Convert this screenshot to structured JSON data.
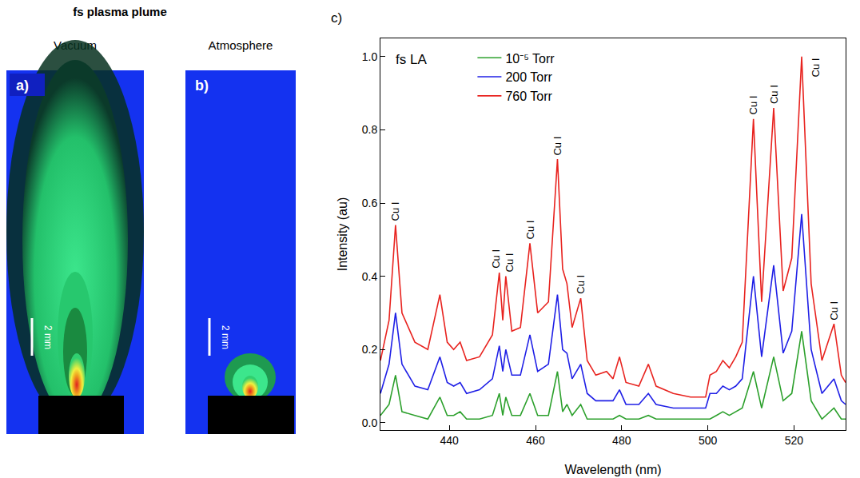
{
  "figure_title": "fs plasma plume",
  "panels": [
    {
      "label": "a)",
      "title": "Vacuum",
      "scale_bar": "2 mm"
    },
    {
      "label": "b)",
      "title": "Atmosphere",
      "scale_bar": "2 mm"
    }
  ],
  "chart_data": {
    "type": "line",
    "label": "c)",
    "inset_text": "fs LA",
    "x_label": "Wavelength (nm)",
    "y_label": "Intensity (au)",
    "xlim": [
      424,
      532
    ],
    "xticks": [
      440,
      460,
      480,
      500,
      520
    ],
    "ylim": [
      -0.02,
      1.05
    ],
    "yticks": [
      {
        "value": 0,
        "label": "0.0"
      },
      {
        "value": 0.2,
        "label": "0.2"
      },
      {
        "value": 0.4,
        "label": "0.4"
      },
      {
        "value": 0.6,
        "label": "0.6"
      },
      {
        "value": 0.8,
        "label": "0.8"
      },
      {
        "value": 1,
        "label": "1.0"
      }
    ],
    "grid": false,
    "legend": "upper left",
    "x": [
      424,
      426,
      427.5,
      429,
      432,
      435,
      437.8,
      439.5,
      441,
      442.5,
      444,
      447,
      450,
      451.6,
      452.4,
      453.1,
      454.5,
      456.5,
      458.7,
      460.5,
      463,
      465.1,
      466.3,
      467.3,
      468.5,
      470.5,
      472,
      474,
      476.5,
      478,
      479.5,
      481,
      484,
      486.2,
      488,
      492,
      496,
      499.5,
      500.5,
      502,
      503.5,
      505,
      506.5,
      508,
      510.6,
      512.5,
      515.3,
      517.5,
      519.5,
      521.8,
      524,
      526.5,
      529.3,
      531,
      532
    ],
    "series": [
      {
        "name": "10⁻⁵ Torr",
        "color": "#2ca02c",
        "values": [
          0.02,
          0.05,
          0.13,
          0.03,
          0.02,
          0.01,
          0.07,
          0.02,
          0.02,
          0.03,
          0.01,
          0.01,
          0.02,
          0.08,
          0.02,
          0.07,
          0.02,
          0.02,
          0.08,
          0.02,
          0.02,
          0.14,
          0.03,
          0.05,
          0.02,
          0.05,
          0.01,
          0.01,
          0.01,
          0.01,
          0.02,
          0.01,
          0.01,
          0.02,
          0.01,
          0.01,
          0.01,
          0.01,
          0.01,
          0.02,
          0.03,
          0.02,
          0.03,
          0.04,
          0.14,
          0.04,
          0.18,
          0.06,
          0.08,
          0.25,
          0.06,
          0.01,
          0.04,
          0.01,
          0.01
        ]
      },
      {
        "name": "200 Torr",
        "color": "#1f1fe6",
        "values": [
          0.08,
          0.16,
          0.3,
          0.16,
          0.1,
          0.09,
          0.18,
          0.11,
          0.1,
          0.11,
          0.08,
          0.09,
          0.12,
          0.21,
          0.14,
          0.2,
          0.13,
          0.13,
          0.24,
          0.14,
          0.16,
          0.35,
          0.2,
          0.19,
          0.12,
          0.16,
          0.08,
          0.06,
          0.06,
          0.06,
          0.09,
          0.05,
          0.05,
          0.08,
          0.05,
          0.04,
          0.04,
          0.04,
          0.08,
          0.08,
          0.1,
          0.09,
          0.1,
          0.12,
          0.4,
          0.18,
          0.43,
          0.19,
          0.25,
          0.57,
          0.2,
          0.08,
          0.12,
          0.06,
          0.05
        ]
      },
      {
        "name": "760 Torr",
        "color": "#e8231f",
        "values": [
          0.17,
          0.28,
          0.54,
          0.3,
          0.22,
          0.2,
          0.35,
          0.22,
          0.2,
          0.22,
          0.17,
          0.18,
          0.24,
          0.41,
          0.28,
          0.4,
          0.25,
          0.26,
          0.49,
          0.3,
          0.33,
          0.72,
          0.42,
          0.38,
          0.26,
          0.34,
          0.17,
          0.13,
          0.14,
          0.12,
          0.18,
          0.11,
          0.1,
          0.16,
          0.1,
          0.08,
          0.07,
          0.07,
          0.13,
          0.14,
          0.17,
          0.15,
          0.18,
          0.22,
          0.83,
          0.33,
          0.86,
          0.36,
          0.45,
          1.0,
          0.38,
          0.17,
          0.27,
          0.13,
          0.11
        ]
      }
    ],
    "annotations": [
      {
        "text": "Cu I",
        "x": 427.5,
        "y": 0.54
      },
      {
        "text": "Cu I",
        "x": 451.6,
        "y": 0.41
      },
      {
        "text": "Cu I",
        "x": 453.1,
        "y": 0.4
      },
      {
        "text": "Cu I",
        "x": 458.7,
        "y": 0.49
      },
      {
        "text": "Cu I",
        "x": 465.1,
        "y": 0.72
      },
      {
        "text": "Cu I",
        "x": 470.5,
        "y": 0.34
      },
      {
        "text": "Cu I",
        "x": 510.6,
        "y": 0.83
      },
      {
        "text": "Cu I",
        "x": 515.3,
        "y": 0.86
      },
      {
        "text": "Cu I",
        "x": 521.8,
        "y": 1.0
      },
      {
        "text": "Cu I",
        "x": 529.3,
        "y": 0.27
      }
    ]
  }
}
